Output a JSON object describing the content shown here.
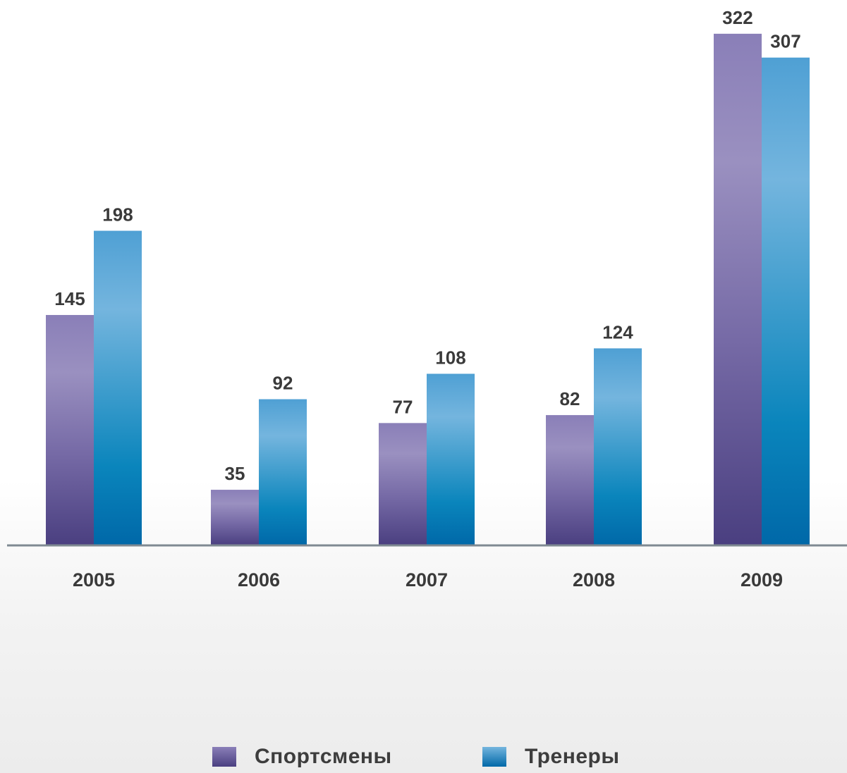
{
  "colors": {
    "series_1": "#6b5f9e",
    "series_2": "#2d8fc6",
    "axis": "#7f8a92",
    "text": "#3a3a3a"
  },
  "chart_data": {
    "type": "bar",
    "title": "",
    "xlabel": "",
    "ylabel": "",
    "categories": [
      "2005",
      "2006",
      "2007",
      "2008",
      "2009"
    ],
    "series": [
      {
        "name": "Спортсмены",
        "values": [
          145,
          35,
          77,
          82,
          322
        ]
      },
      {
        "name": "Тренеры",
        "values": [
          198,
          92,
          108,
          124,
          307
        ]
      }
    ],
    "ylim": [
      0,
      330
    ],
    "grid": false,
    "legend": "bottom",
    "data_labels": true
  }
}
